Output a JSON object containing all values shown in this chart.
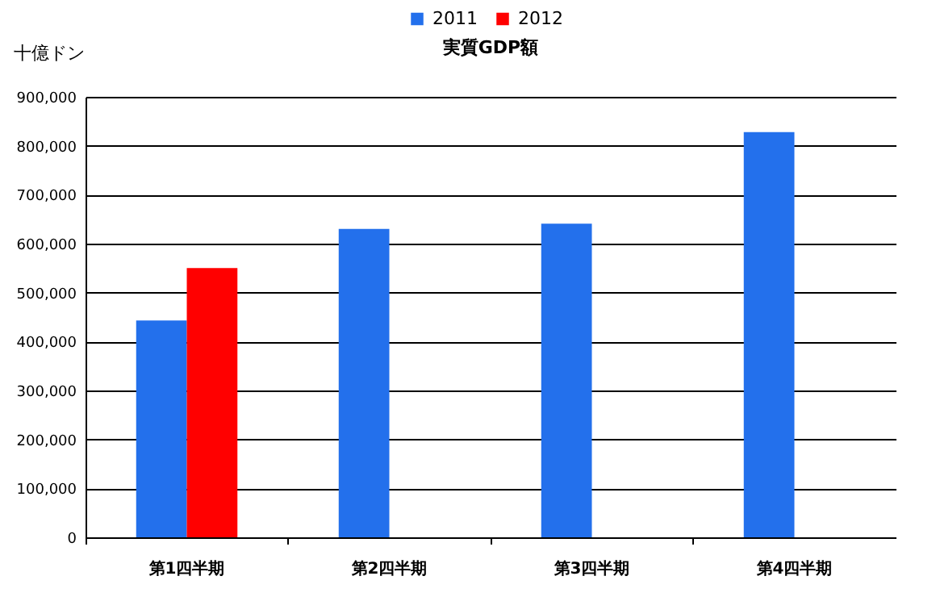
{
  "chart_data": {
    "type": "bar",
    "title": "実質GDP額",
    "ylabel": "十億ドン",
    "categories": [
      "第1四半期",
      "第2四半期",
      "第3四半期",
      "第4四半期"
    ],
    "series": [
      {
        "name": "2011",
        "color": "#2370ec",
        "values": [
          443000,
          630000,
          641000,
          828000
        ]
      },
      {
        "name": "2012",
        "color": "#ff0000",
        "values": [
          550000,
          null,
          null,
          null
        ]
      }
    ],
    "ylim": [
      0,
      900000
    ],
    "yticks": [
      0,
      {
        "value": 100000,
        "label": "100,000"
      },
      {
        "value": 200000,
        "label": "200,000"
      },
      {
        "value": 300000,
        "label": "300,000"
      },
      {
        "value": 400000,
        "label": "400,000"
      },
      {
        "value": 500000,
        "label": "500,000"
      },
      {
        "value": 600000,
        "label": "600,000"
      },
      {
        "value": 700000,
        "label": "700,000"
      },
      {
        "value": 800000,
        "label": "800,000"
      },
      {
        "value": 900000,
        "label": "900,000"
      }
    ],
    "grid": "y",
    "legend": "top"
  }
}
